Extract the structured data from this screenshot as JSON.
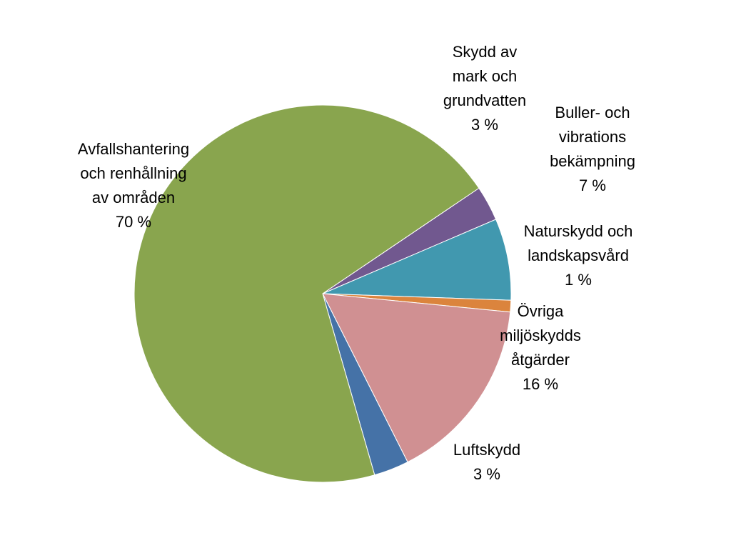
{
  "chart_data": {
    "type": "pie",
    "title": "",
    "unit": "%",
    "slices": [
      {
        "label_lines": [
          "Skydd av",
          "mark och",
          "grundvatten"
        ],
        "value": 3,
        "value_label": "3 %",
        "color": "#71588F"
      },
      {
        "label_lines": [
          "Buller- och",
          "vibrations",
          "bekämpning"
        ],
        "value": 7,
        "value_label": "7 %",
        "color": "#4198AF"
      },
      {
        "label_lines": [
          "Naturskydd och",
          "landskapsvård"
        ],
        "value": 1,
        "value_label": "1 %",
        "color": "#DB843D"
      },
      {
        "label_lines": [
          "Övriga",
          "miljöskydds",
          "åtgärder"
        ],
        "value": 16,
        "value_label": "16 %",
        "color": "#D09092"
      },
      {
        "label_lines": [
          "Luftskydd"
        ],
        "value": 3,
        "value_label": "3 %",
        "color": "#4572A7"
      },
      {
        "label_lines": [
          "Avfallshantering",
          "och renhållning",
          "av områden"
        ],
        "value": 70,
        "value_label": "70 %",
        "color": "#89A54E"
      }
    ],
    "legend": "none",
    "data_labels": "outside"
  }
}
